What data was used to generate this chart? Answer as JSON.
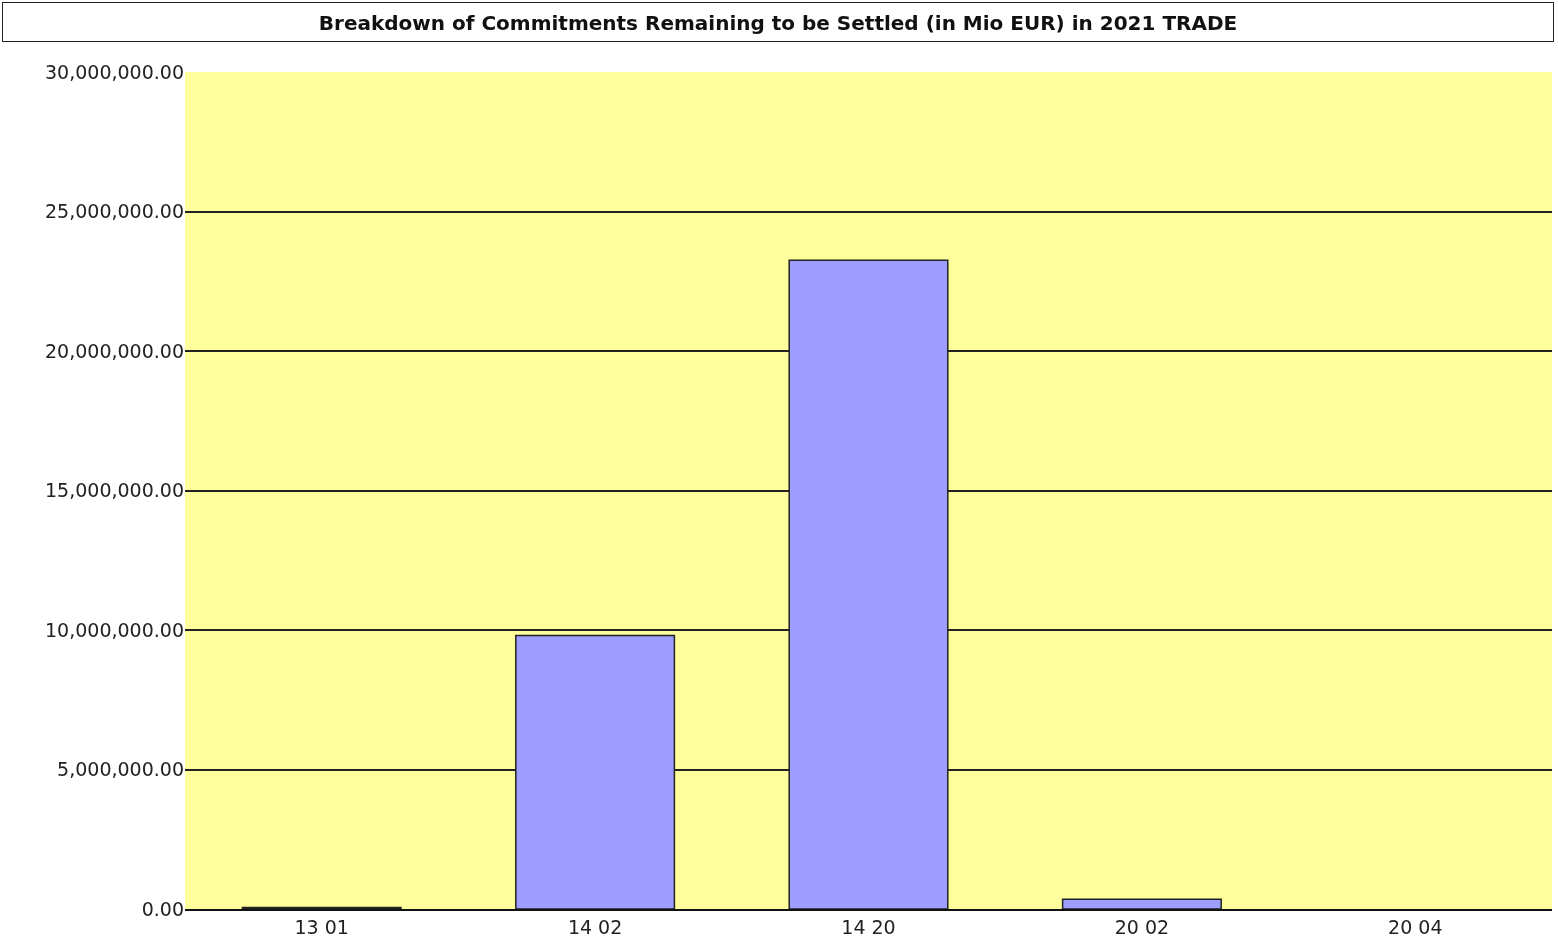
{
  "chart_data": {
    "type": "bar",
    "title": "Breakdown of Commitments Remaining to be Settled (in Mio EUR) in 2021 TRADE",
    "categories": [
      "13 01",
      "14 02",
      "14 20",
      "20 02",
      "20 04"
    ],
    "values": [
      50000,
      9800000,
      23250000,
      350000,
      0
    ],
    "color": "#9e9efe",
    "ylim": [
      0,
      30000000
    ],
    "yticks": [
      {
        "value": 0,
        "label": "0.00"
      },
      {
        "value": 5000000,
        "label": "5,000,000.00"
      },
      {
        "value": 10000000,
        "label": "10,000,000.00"
      },
      {
        "value": 15000000,
        "label": "15,000,000.00"
      },
      {
        "value": 20000000,
        "label": "20,000,000.00"
      },
      {
        "value": 25000000,
        "label": "25,000,000.00"
      },
      {
        "value": 30000000,
        "label": "30,000,000.00"
      }
    ],
    "grid": "y"
  }
}
